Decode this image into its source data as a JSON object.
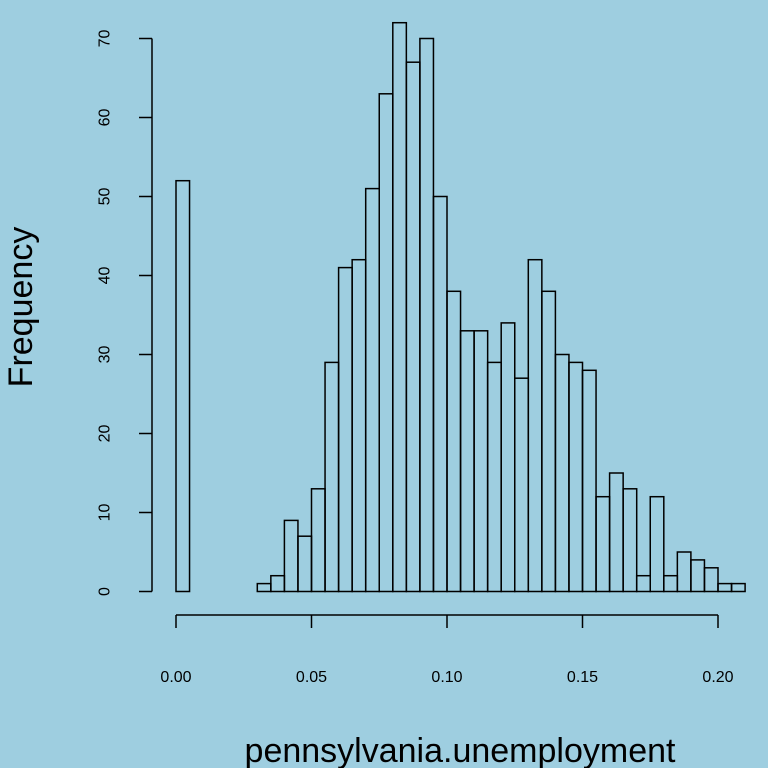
{
  "background_color": "#9ecee0",
  "chart_data": {
    "type": "histogram",
    "xlabel": "pennsylvania.unemployment",
    "ylabel": "Frequency",
    "xlim": [
      0.0,
      0.21
    ],
    "ylim": [
      0,
      70
    ],
    "bin_width": 0.005,
    "bins_start": 0.0,
    "counts": [
      52,
      0,
      0,
      0,
      0,
      0,
      1,
      2,
      9,
      7,
      13,
      29,
      41,
      42,
      51,
      63,
      72,
      67,
      70,
      50,
      38,
      33,
      33,
      29,
      34,
      27,
      42,
      38,
      30,
      29,
      28,
      12,
      15,
      13,
      2,
      12,
      2,
      5,
      4,
      3,
      1,
      1
    ],
    "x_ticks": [
      0.0,
      0.05,
      0.1,
      0.15,
      0.2
    ],
    "x_tick_labels": [
      "0.00",
      "0.05",
      "0.10",
      "0.15",
      "0.20"
    ],
    "y_ticks": [
      0,
      10,
      20,
      30,
      40,
      50,
      60,
      70
    ],
    "y_tick_labels": [
      "0",
      "10",
      "20",
      "30",
      "40",
      "50",
      "60",
      "70"
    ],
    "grid": false,
    "legend": "none"
  }
}
